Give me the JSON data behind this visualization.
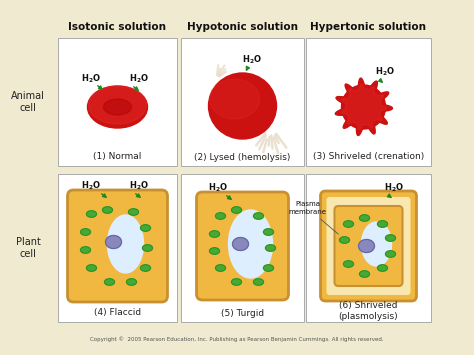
{
  "bg_color": "#f0ead0",
  "panel_bg": "#ffffff",
  "panel_border": "#aaaaaa",
  "col_headers": [
    "Isotonic solution",
    "Hypotonic solution",
    "Hypertonic solution"
  ],
  "row_labels": [
    "Animal\ncell",
    "Plant\ncell"
  ],
  "cell_captions": [
    [
      "(1) Normal",
      "(2) Lysed (hemolysis)",
      "(3) Shriveled (crenation)"
    ],
    [
      "(4) Flaccid",
      "(5) Turgid",
      "(6) Shriveled\n(plasmolysis)"
    ]
  ],
  "copyright": "Copyright ©  2005 Pearson Education, Inc. Publishing as Pearson Benjamin Cummings. All rights reserved.",
  "rbc_color": "#cc1111",
  "rbc_dark": "#aa0000",
  "rbc_highlight": "#ee3333",
  "plant_cell_fill": "#f0b840",
  "plant_cell_border": "#c89030",
  "vacuole_color": "#ddeeff",
  "nucleus_color": "#8888bb",
  "nucleus_border": "#6666aa",
  "chloroplast_color": "#44aa33",
  "chloroplast_border": "#228822",
  "arrow_color": "#228822",
  "label_color": "#222222",
  "header_color": "#111111",
  "copyright_color": "#555555",
  "title_fontsize": 7.5,
  "caption_fontsize": 6.5,
  "row_label_fontsize": 7,
  "h2o_fontsize": 6,
  "copyright_fontsize": 4
}
